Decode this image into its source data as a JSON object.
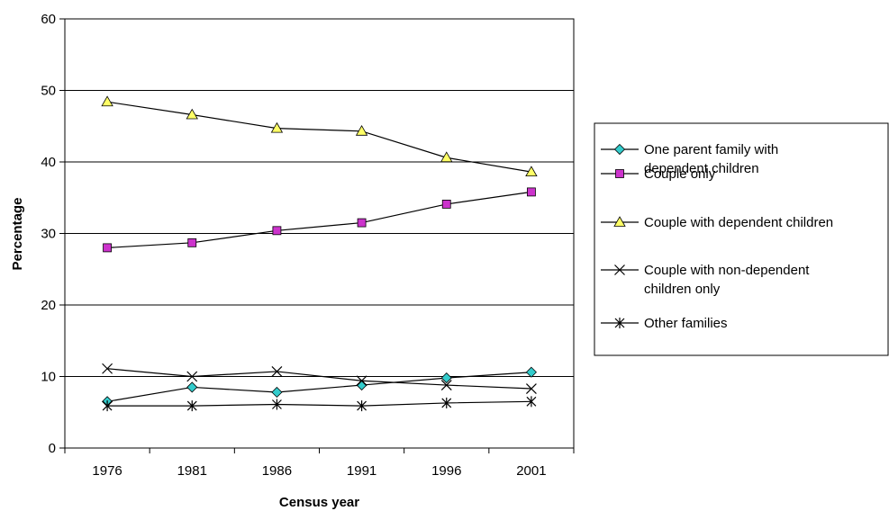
{
  "chart_data": {
    "type": "line",
    "title": "",
    "xlabel": "Census year",
    "ylabel": "Percentage",
    "ylim": [
      0,
      60
    ],
    "yticks": [
      0,
      10,
      20,
      30,
      40,
      50,
      60
    ],
    "grid": "horizontal",
    "legend_position": "right",
    "categories": [
      "1976",
      "1981",
      "1986",
      "1991",
      "1996",
      "2001"
    ],
    "series": [
      {
        "name_lines": [
          "One parent family with",
          "dependent children"
        ],
        "marker": "diamond",
        "color": "#33CCCC",
        "values": [
          6.5,
          8.5,
          7.8,
          8.8,
          9.8,
          10.6
        ]
      },
      {
        "name_lines": [
          "Couple only"
        ],
        "marker": "square",
        "color": "#CC33CC",
        "values": [
          28.0,
          28.7,
          30.4,
          31.5,
          34.1,
          35.8
        ]
      },
      {
        "name_lines": [
          "Couple with dependent children"
        ],
        "marker": "triangle",
        "color": "#FFFF66",
        "values": [
          48.4,
          46.6,
          44.7,
          44.3,
          40.6,
          38.6
        ]
      },
      {
        "name_lines": [
          "Couple with non-dependent",
          "children only"
        ],
        "marker": "x",
        "color": "#000000",
        "values": [
          11.1,
          10.0,
          10.7,
          9.4,
          8.8,
          8.3
        ]
      },
      {
        "name_lines": [
          "Other families"
        ],
        "marker": "star",
        "color": "#000000",
        "values": [
          5.9,
          5.9,
          6.1,
          5.9,
          6.3,
          6.5
        ]
      }
    ]
  }
}
